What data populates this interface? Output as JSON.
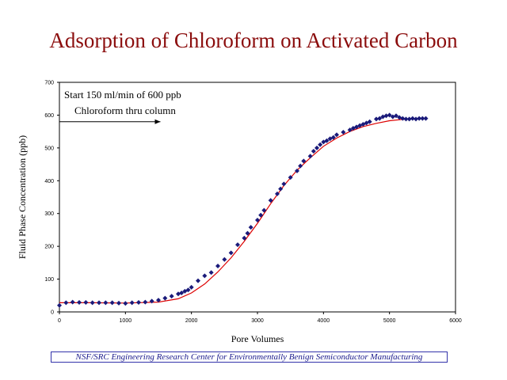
{
  "slide_title": "Adsorption of Chloroform on Activated Carbon",
  "footer": "NSF/SRC Engineering Research Center for Environmentally Benign Semiconductor Manufacturing",
  "chart_data": {
    "type": "scatter",
    "title": "",
    "xlabel": "Pore Volumes",
    "ylabel": "Fluid Phase Concentration (ppb)",
    "xlim": [
      0,
      6000
    ],
    "ylim": [
      0,
      700
    ],
    "x_ticks": [
      "0",
      "1000",
      "2000",
      "3000",
      "4000",
      "5000",
      "6000"
    ],
    "y_ticks": [
      "0",
      "100",
      "200",
      "300",
      "400",
      "500",
      "600",
      "700"
    ],
    "grid": false,
    "annotation": {
      "lines": [
        "Start 150 ml/min of 600 ppb",
        "Chloroform thru column"
      ],
      "arrow": {
        "from": [
          0,
          580
        ],
        "to": [
          1530,
          580
        ]
      }
    },
    "series": [
      {
        "kind": "points",
        "color": "#1a1a7a",
        "x": [
          0,
          100,
          200,
          300,
          400,
          500,
          600,
          700,
          800,
          900,
          1000,
          1100,
          1200,
          1300,
          1400,
          1500,
          1600,
          1700,
          1800,
          1850,
          1900,
          1950,
          2000,
          2100,
          2200,
          2300,
          2400,
          2500,
          2600,
          2700,
          2800,
          2850,
          2900,
          3000,
          3050,
          3100,
          3200,
          3300,
          3350,
          3400,
          3500,
          3600,
          3650,
          3700,
          3800,
          3850,
          3900,
          3950,
          4000,
          4050,
          4100,
          4150,
          4200,
          4300,
          4400,
          4450,
          4500,
          4550,
          4600,
          4650,
          4700,
          4800,
          4850,
          4900,
          4950,
          5000,
          5050,
          5100,
          5150,
          5200,
          5250,
          5300,
          5350,
          5400,
          5450,
          5500,
          5550
        ],
        "y": [
          20,
          28,
          30,
          29,
          29,
          28,
          28,
          28,
          28,
          27,
          26,
          28,
          29,
          30,
          33,
          36,
          42,
          48,
          55,
          58,
          63,
          67,
          75,
          95,
          110,
          120,
          140,
          160,
          180,
          205,
          225,
          240,
          258,
          280,
          295,
          310,
          340,
          360,
          375,
          390,
          410,
          430,
          445,
          460,
          475,
          490,
          500,
          510,
          518,
          522,
          528,
          532,
          540,
          548,
          555,
          560,
          564,
          568,
          572,
          576,
          580,
          588,
          590,
          595,
          598,
          600,
          595,
          598,
          593,
          590,
          588,
          588,
          590,
          588,
          590,
          590,
          590
        ]
      },
      {
        "kind": "fit",
        "color": "#dd0000",
        "x": [
          0,
          500,
          1000,
          1500,
          1800,
          2000,
          2200,
          2400,
          2600,
          2800,
          3000,
          3200,
          3400,
          3600,
          3800,
          4000,
          4200,
          4400,
          4600,
          4800,
          5000,
          5200,
          5400,
          5550
        ],
        "y": [
          28,
          28,
          27,
          30,
          40,
          58,
          85,
          122,
          165,
          215,
          270,
          330,
          385,
          432,
          470,
          505,
          530,
          550,
          565,
          575,
          583,
          587,
          589,
          590
        ]
      }
    ]
  }
}
